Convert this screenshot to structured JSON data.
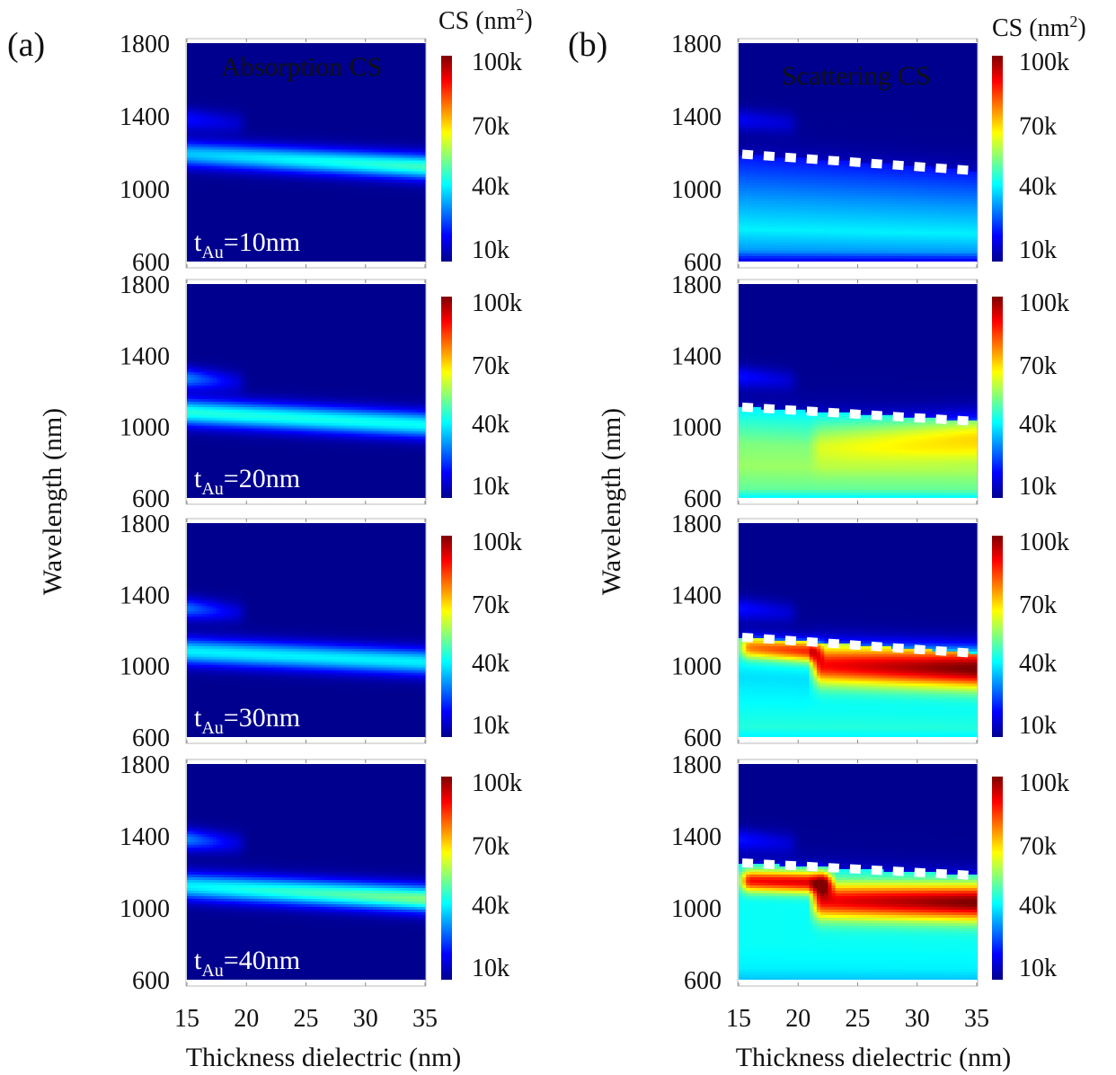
{
  "panel_a_label": "(a)",
  "panel_b_label": "(b)",
  "cbar_title_text": "CS (nm",
  "cbar_title_sup": "2",
  "cbar_title_close": ")",
  "panel_a_title": "Absorption CS",
  "panel_b_title": "Scattering CS",
  "ylabel": "Wavelength (nm)",
  "xlabel": "Thickness dielectric (nm)",
  "title_colors": {
    "absorption": "#2ecc40",
    "scattering": "#e8202a"
  },
  "colormap": [
    "#00008f",
    "#0000ff",
    "#00ffff",
    "#ffff00",
    "#ff0000",
    "#800000"
  ],
  "chart_data": [
    {
      "panel": "a",
      "type": "heatmap",
      "quantity": "Absorption CS",
      "tAu_label": "tAu=10nm",
      "tAu_nm": 10,
      "xlim": [
        15,
        35
      ],
      "ylim": [
        600,
        1800
      ],
      "x_ticks": [
        15,
        20,
        25,
        30,
        35
      ],
      "y_ticks": [
        600,
        1000,
        1400,
        1800
      ],
      "colorbar_ticks": [
        "10k",
        "40k",
        "70k",
        "100k"
      ],
      "colorbar_range": [
        0,
        110000
      ],
      "peaks": [
        {
          "x0": 15,
          "x1": 35,
          "wl0": 1190,
          "wl1": 1120,
          "width_nm": 70,
          "v0": 35000,
          "v1": 48000
        },
        {
          "x0": 15,
          "x1": 19,
          "wl0": 1380,
          "wl1": 1360,
          "width_nm": 60,
          "v0": 15000,
          "v1": 8000
        }
      ]
    },
    {
      "panel": "a",
      "type": "heatmap",
      "quantity": "Absorption CS",
      "tAu_label": "tAu=20nm",
      "tAu_nm": 20,
      "xlim": [
        15,
        35
      ],
      "ylim": [
        600,
        1800
      ],
      "x_ticks": [
        15,
        20,
        25,
        30,
        35
      ],
      "y_ticks": [
        600,
        1000,
        1400,
        1800
      ],
      "colorbar_ticks": [
        "10k",
        "40k",
        "70k",
        "100k"
      ],
      "colorbar_range": [
        0,
        110000
      ],
      "peaks": [
        {
          "x0": 15,
          "x1": 35,
          "wl0": 1080,
          "wl1": 1010,
          "width_nm": 75,
          "v0": 45000,
          "v1": 42000
        },
        {
          "x0": 15,
          "x1": 19,
          "wl0": 1270,
          "wl1": 1250,
          "width_nm": 60,
          "v0": 28000,
          "v1": 10000
        }
      ]
    },
    {
      "panel": "a",
      "type": "heatmap",
      "quantity": "Absorption CS",
      "tAu_label": "tAu=30nm",
      "tAu_nm": 30,
      "xlim": [
        15,
        35
      ],
      "ylim": [
        600,
        1800
      ],
      "x_ticks": [
        15,
        20,
        25,
        30,
        35
      ],
      "y_ticks": [
        600,
        1000,
        1400,
        1800
      ],
      "colorbar_ticks": [
        "10k",
        "40k",
        "70k",
        "100k"
      ],
      "colorbar_range": [
        0,
        110000
      ],
      "peaks": [
        {
          "x0": 15,
          "x1": 35,
          "wl0": 1080,
          "wl1": 1020,
          "width_nm": 75,
          "v0": 40000,
          "v1": 40000
        },
        {
          "x0": 15,
          "x1": 19,
          "wl0": 1320,
          "wl1": 1300,
          "width_nm": 60,
          "v0": 26000,
          "v1": 10000
        }
      ]
    },
    {
      "panel": "a",
      "type": "heatmap",
      "quantity": "Absorption CS",
      "tAu_label": "tAu=40nm",
      "tAu_nm": 40,
      "xlim": [
        15,
        35
      ],
      "ylim": [
        600,
        1800
      ],
      "x_ticks": [
        15,
        20,
        25,
        30,
        35
      ],
      "y_ticks": [
        600,
        1000,
        1400,
        1800
      ],
      "colorbar_ticks": [
        "10k",
        "40k",
        "70k",
        "100k"
      ],
      "colorbar_range": [
        0,
        110000
      ],
      "peaks": [
        {
          "x0": 15,
          "x1": 35,
          "wl0": 1120,
          "wl1": 1050,
          "width_nm": 75,
          "v0": 40000,
          "v1": 55000
        },
        {
          "x0": 15,
          "x1": 19,
          "wl0": 1380,
          "wl1": 1360,
          "width_nm": 60,
          "v0": 28000,
          "v1": 10000
        }
      ]
    },
    {
      "panel": "b",
      "type": "heatmap",
      "quantity": "Scattering CS",
      "tAu_nm": 10,
      "xlim": [
        15,
        35
      ],
      "ylim": [
        600,
        1800
      ],
      "x_ticks": [
        15,
        20,
        25,
        30,
        35
      ],
      "y_ticks": [
        600,
        1000,
        1400,
        1800
      ],
      "colorbar_ticks": [
        "10k",
        "40k",
        "70k",
        "100k"
      ],
      "colorbar_range": [
        0,
        110000
      ],
      "band_edge": [
        [
          15,
          1190
        ],
        [
          35,
          1100
        ]
      ],
      "band_levels": [
        {
          "at": 1.0,
          "v": 15000
        },
        {
          "at": 0.6,
          "v": 30000
        },
        {
          "at": 0.3,
          "v": 40000
        },
        {
          "at": 0.1,
          "v": 30000
        },
        {
          "at": 0.0,
          "v": 10000
        }
      ],
      "peaks": [
        {
          "x0": 15,
          "x1": 19,
          "wl0": 1380,
          "wl1": 1360,
          "width_nm": 60,
          "v0": 12000,
          "v1": 8000
        }
      ]
    },
    {
      "panel": "b",
      "type": "heatmap",
      "quantity": "Scattering CS",
      "tAu_nm": 20,
      "xlim": [
        15,
        35
      ],
      "ylim": [
        600,
        1800
      ],
      "x_ticks": [
        15,
        20,
        25,
        30,
        35
      ],
      "y_ticks": [
        600,
        1000,
        1400,
        1800
      ],
      "colorbar_ticks": [
        "10k",
        "40k",
        "70k",
        "100k"
      ],
      "colorbar_range": [
        0,
        110000
      ],
      "band_edge": [
        [
          15,
          1110
        ],
        [
          35,
          1030
        ]
      ],
      "band_levels": [
        {
          "at": 1.0,
          "v": 40000
        },
        {
          "at": 0.6,
          "v": 55000
        },
        {
          "at": 0.35,
          "v": 58000
        },
        {
          "at": 0.1,
          "v": 52000
        },
        {
          "at": 0.0,
          "v": 40000
        }
      ],
      "peaks": [
        {
          "x0": 22,
          "x1": 35,
          "wl0": 900,
          "wl1": 950,
          "width_nm": 120,
          "v0": 10000,
          "v1": 25000
        },
        {
          "x0": 15,
          "x1": 19,
          "wl0": 1280,
          "wl1": 1260,
          "width_nm": 60,
          "v0": 15000,
          "v1": 8000
        }
      ]
    },
    {
      "panel": "b",
      "type": "heatmap",
      "quantity": "Scattering CS",
      "tAu_nm": 30,
      "xlim": [
        15,
        35
      ],
      "ylim": [
        600,
        1800
      ],
      "x_ticks": [
        15,
        20,
        25,
        30,
        35
      ],
      "y_ticks": [
        600,
        1000,
        1400,
        1800
      ],
      "colorbar_ticks": [
        "10k",
        "40k",
        "70k",
        "100k"
      ],
      "colorbar_range": [
        0,
        110000
      ],
      "band_edge": [
        [
          15,
          1160
        ],
        [
          35,
          1070
        ]
      ],
      "band_levels": [
        {
          "at": 1.0,
          "v": 45000
        },
        {
          "at": 0.6,
          "v": 38000
        },
        {
          "at": 0.3,
          "v": 42000
        },
        {
          "at": 0.1,
          "v": 45000
        },
        {
          "at": 0.0,
          "v": 40000
        }
      ],
      "peaks": [
        {
          "x0": 16,
          "x1": 21,
          "wl0": 1100,
          "wl1": 1080,
          "width_nm": 60,
          "v0": 40000,
          "v1": 50000
        },
        {
          "x0": 22,
          "x1": 35,
          "wl0": 1000,
          "wl1": 980,
          "width_nm": 110,
          "v0": 55000,
          "v1": 70000
        },
        {
          "x0": 15,
          "x1": 19,
          "wl0": 1320,
          "wl1": 1300,
          "width_nm": 60,
          "v0": 15000,
          "v1": 8000
        }
      ]
    },
    {
      "panel": "b",
      "type": "heatmap",
      "quantity": "Scattering CS",
      "tAu_nm": 40,
      "xlim": [
        15,
        35
      ],
      "ylim": [
        600,
        1800
      ],
      "x_ticks": [
        15,
        20,
        25,
        30,
        35
      ],
      "y_ticks": [
        600,
        1000,
        1400,
        1800
      ],
      "colorbar_ticks": [
        "10k",
        "40k",
        "70k",
        "100k"
      ],
      "colorbar_range": [
        0,
        110000
      ],
      "band_edge": [
        [
          15,
          1250
        ],
        [
          35,
          1180
        ]
      ],
      "band_levels": [
        {
          "at": 1.0,
          "v": 40000
        },
        {
          "at": 0.6,
          "v": 42000
        },
        {
          "at": 0.3,
          "v": 42000
        },
        {
          "at": 0.1,
          "v": 40000
        },
        {
          "at": 0.0,
          "v": 35000
        }
      ],
      "peaks": [
        {
          "x0": 16,
          "x1": 22,
          "wl0": 1150,
          "wl1": 1140,
          "width_nm": 60,
          "v0": 55000,
          "v1": 60000
        },
        {
          "x0": 22,
          "x1": 35,
          "wl0": 1040,
          "wl1": 1030,
          "width_nm": 100,
          "v0": 55000,
          "v1": 70000
        },
        {
          "x0": 15,
          "x1": 19,
          "wl0": 1380,
          "wl1": 1360,
          "width_nm": 60,
          "v0": 15000,
          "v1": 8000
        }
      ]
    }
  ]
}
